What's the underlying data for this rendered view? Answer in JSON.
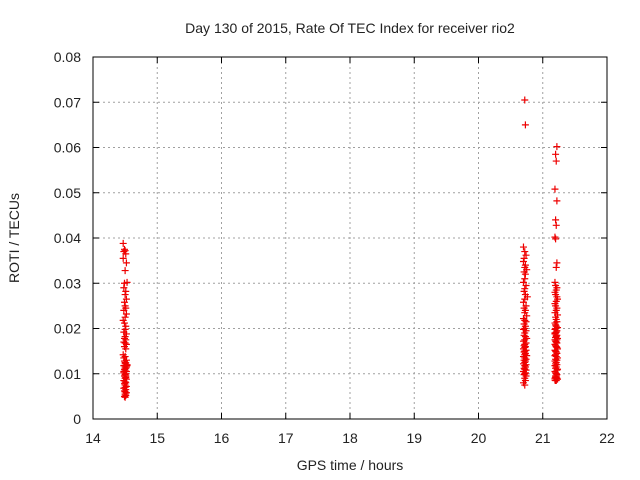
{
  "chart_data": {
    "type": "scatter",
    "title": "Day 130 of 2015, Rate Of TEC Index for receiver rio2",
    "xlabel": "GPS time / hours",
    "ylabel": "ROTI / TECUs",
    "xlim": [
      14,
      22
    ],
    "ylim": [
      0,
      0.08
    ],
    "x_ticks": [
      "14",
      "15",
      "16",
      "17",
      "18",
      "19",
      "20",
      "21",
      "22"
    ],
    "y_ticks": [
      "0",
      "0.01",
      "0.02",
      "0.03",
      "0.04",
      "0.05",
      "0.06",
      "0.07",
      "0.08"
    ],
    "grid": true,
    "marker": "+",
    "color": "#ee0000",
    "series": [
      {
        "x": [
          14.47,
          14.49,
          14.48,
          14.5,
          14.51,
          14.47,
          14.52,
          14.5,
          14.49,
          14.53,
          14.48,
          14.51,
          14.5,
          14.52,
          14.49,
          14.5,
          14.51,
          14.48,
          14.52,
          14.5,
          14.47,
          14.49,
          14.51,
          14.5,
          14.48,
          14.52,
          14.5,
          14.49,
          14.51,
          14.48,
          14.5,
          14.52,
          14.49,
          14.51,
          14.47,
          14.5,
          14.48,
          14.52,
          14.49,
          14.51,
          14.5,
          14.53,
          14.48,
          14.5,
          14.51,
          14.49,
          14.5,
          14.52,
          14.48,
          14.51,
          14.5,
          14.49,
          14.51,
          14.5,
          14.52,
          14.48,
          14.5,
          14.51,
          14.49,
          14.5,
          14.52,
          14.5,
          14.48,
          14.51,
          14.49,
          14.5,
          14.52,
          14.5,
          14.51,
          14.49,
          14.5,
          14.52,
          14.5,
          14.48,
          14.51,
          14.53
        ],
        "y": [
          0.0388,
          0.0375,
          0.037,
          0.0372,
          0.0365,
          0.0355,
          0.0345,
          0.0328,
          0.03,
          0.0302,
          0.029,
          0.0282,
          0.0275,
          0.0265,
          0.0258,
          0.025,
          0.0245,
          0.024,
          0.0232,
          0.0225,
          0.0218,
          0.0212,
          0.0205,
          0.0198,
          0.0192,
          0.0188,
          0.0182,
          0.0178,
          0.0175,
          0.017,
          0.0168,
          0.0165,
          0.016,
          0.0155,
          0.0142,
          0.0138,
          0.0135,
          0.013,
          0.0128,
          0.0124,
          0.0122,
          0.012,
          0.0118,
          0.0115,
          0.0112,
          0.011,
          0.0108,
          0.0105,
          0.0102,
          0.01,
          0.0098,
          0.0095,
          0.0092,
          0.009,
          0.0088,
          0.0085,
          0.0082,
          0.008,
          0.0078,
          0.0075,
          0.0072,
          0.007,
          0.0068,
          0.0065,
          0.0062,
          0.006,
          0.0058,
          0.0055,
          0.0052,
          0.005,
          0.0048,
          0.0115,
          0.0125,
          0.0105,
          0.0095,
          0.0118
        ]
      },
      {
        "x": [
          20.72,
          20.73,
          20.7,
          20.72,
          20.74,
          20.71,
          20.7,
          20.73,
          20.72,
          20.75,
          20.71,
          20.73,
          20.72,
          20.7,
          20.74,
          20.72,
          20.71,
          20.73,
          20.76,
          20.72,
          20.7,
          20.74,
          20.71,
          20.73,
          20.72,
          20.75,
          20.7,
          20.72,
          20.74,
          20.71,
          20.73,
          20.72,
          20.7,
          20.74,
          20.72,
          20.71,
          20.73,
          20.75,
          20.72,
          20.7,
          20.74,
          20.72,
          20.71,
          20.73,
          20.72,
          20.7,
          20.74,
          20.72,
          20.71,
          20.73,
          20.72,
          20.75,
          20.7,
          20.72,
          20.74,
          20.71,
          20.73,
          20.72,
          20.7,
          20.74,
          20.72,
          20.73,
          20.71,
          20.72,
          20.74,
          20.7,
          20.73,
          20.72,
          20.71,
          20.74,
          20.72,
          20.73,
          20.7,
          20.72
        ],
        "y": [
          0.0705,
          0.065,
          0.038,
          0.037,
          0.0362,
          0.0355,
          0.0348,
          0.034,
          0.0335,
          0.033,
          0.0325,
          0.032,
          0.031,
          0.0302,
          0.0295,
          0.0288,
          0.0282,
          0.0275,
          0.027,
          0.0265,
          0.0258,
          0.025,
          0.0245,
          0.024,
          0.0235,
          0.0228,
          0.0222,
          0.0218,
          0.0215,
          0.021,
          0.0205,
          0.02,
          0.0198,
          0.0195,
          0.019,
          0.0185,
          0.0182,
          0.0178,
          0.0175,
          0.0172,
          0.0168,
          0.0165,
          0.0162,
          0.016,
          0.0158,
          0.0155,
          0.0152,
          0.015,
          0.0148,
          0.0145,
          0.0142,
          0.014,
          0.0138,
          0.0135,
          0.0132,
          0.013,
          0.0128,
          0.0125,
          0.0122,
          0.012,
          0.0118,
          0.0115,
          0.0112,
          0.011,
          0.0108,
          0.0105,
          0.0102,
          0.01,
          0.0098,
          0.0095,
          0.009,
          0.0085,
          0.008,
          0.0075
        ]
      },
      {
        "x": [
          21.22,
          21.2,
          21.21,
          21.19,
          21.22,
          21.2,
          21.21,
          21.19,
          21.2,
          21.22,
          21.21,
          21.19,
          21.2,
          21.22,
          21.21,
          21.19,
          21.2,
          21.22,
          21.23,
          21.21,
          21.19,
          21.2,
          21.22,
          21.21,
          21.19,
          21.23,
          21.2,
          21.21,
          21.22,
          21.19,
          21.2,
          21.21,
          21.23,
          21.2,
          21.19,
          21.22,
          21.21,
          21.2,
          21.19,
          21.22,
          21.21,
          21.2,
          21.23,
          21.19,
          21.2,
          21.21,
          21.22,
          21.19,
          21.2,
          21.21,
          21.22,
          21.23,
          21.19,
          21.2,
          21.21,
          21.22,
          21.2,
          21.19,
          21.21,
          21.23,
          21.2,
          21.22,
          21.19,
          21.21,
          21.2,
          21.22,
          21.19,
          21.21,
          21.2,
          21.23,
          21.22,
          21.19,
          21.2,
          21.21,
          21.22,
          21.2,
          21.21,
          21.19,
          21.22,
          21.2,
          21.21,
          21.23,
          21.2,
          21.19,
          21.22,
          21.21,
          21.2,
          21.19,
          21.22,
          21.21
        ],
        "y": [
          0.0602,
          0.0585,
          0.057,
          0.0508,
          0.0482,
          0.044,
          0.0428,
          0.0402,
          0.0398,
          0.0345,
          0.0335,
          0.0302,
          0.0295,
          0.029,
          0.0285,
          0.028,
          0.0275,
          0.027,
          0.0265,
          0.026,
          0.0255,
          0.025,
          0.0245,
          0.024,
          0.0235,
          0.023,
          0.0225,
          0.022,
          0.0215,
          0.0212,
          0.0208,
          0.0205,
          0.0202,
          0.02,
          0.0198,
          0.0195,
          0.0192,
          0.019,
          0.0188,
          0.0185,
          0.0182,
          0.018,
          0.0178,
          0.0175,
          0.0172,
          0.017,
          0.0168,
          0.0165,
          0.0162,
          0.016,
          0.0158,
          0.0155,
          0.0152,
          0.015,
          0.0148,
          0.0145,
          0.0142,
          0.014,
          0.0138,
          0.0135,
          0.0132,
          0.013,
          0.0128,
          0.0125,
          0.0122,
          0.012,
          0.0118,
          0.0115,
          0.0112,
          0.011,
          0.0108,
          0.0105,
          0.0102,
          0.01,
          0.0098,
          0.0095,
          0.0092,
          0.009,
          0.0088,
          0.0085,
          0.0085,
          0.0088,
          0.0092,
          0.0086,
          0.009,
          0.0095,
          0.018,
          0.019,
          0.0175,
          0.0185
        ]
      }
    ]
  }
}
